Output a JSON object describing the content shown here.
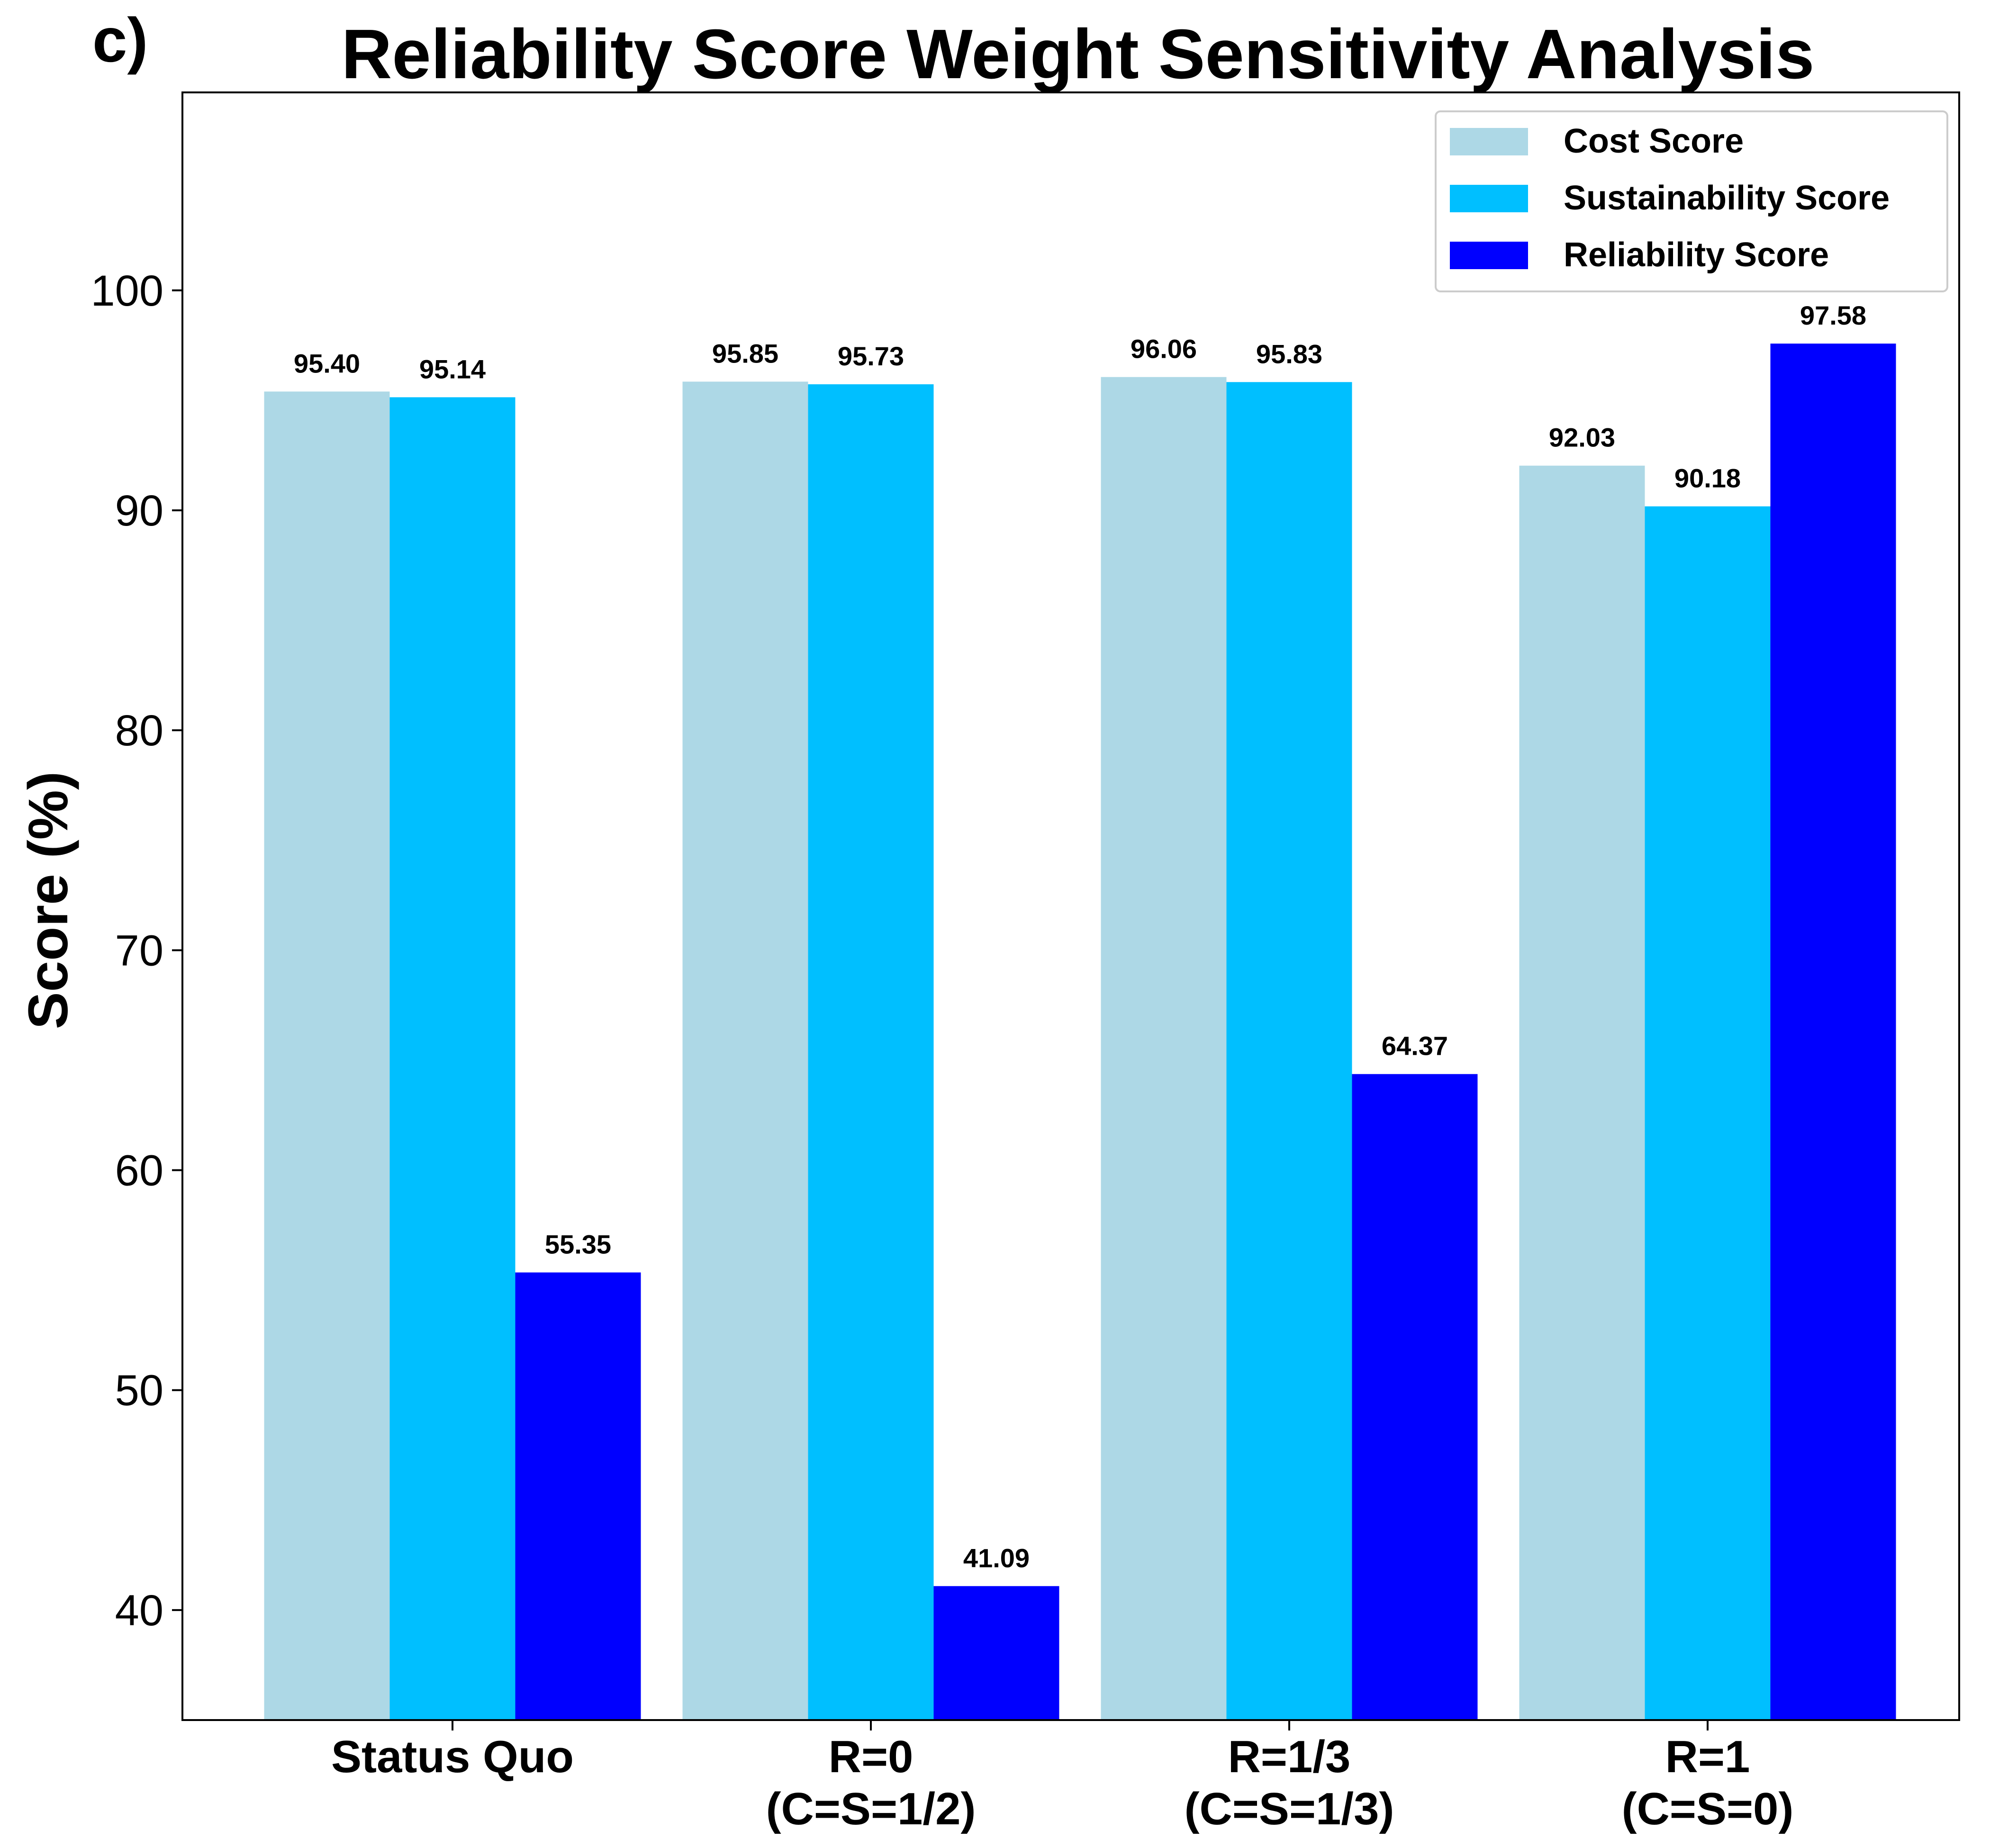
{
  "chart_data": {
    "type": "bar",
    "panel_label": "c)",
    "title": "Reliability Score Weight Sensitivity Analysis",
    "xlabel": "",
    "ylabel": "Score (%)",
    "ylim": [
      35,
      109
    ],
    "yticks": [
      40,
      50,
      60,
      70,
      80,
      90,
      100
    ],
    "grid": false,
    "legend_position": "top-right",
    "categories": [
      [
        "Status Quo"
      ],
      [
        "R=0",
        "(C=S=1/2)"
      ],
      [
        "R=1/3",
        "(C=S=1/3)"
      ],
      [
        "R=1",
        "(C=S=0)"
      ]
    ],
    "series": [
      {
        "name": "Cost Score",
        "color": "#add8e6",
        "values": [
          95.4,
          95.85,
          96.06,
          92.03
        ],
        "labels": [
          "95.40",
          "95.85",
          "96.06",
          "92.03"
        ]
      },
      {
        "name": "Sustainability Score",
        "color": "#00bfff",
        "values": [
          95.14,
          95.73,
          95.83,
          90.18
        ],
        "labels": [
          "95.14",
          "95.73",
          "95.83",
          "90.18"
        ]
      },
      {
        "name": "Reliability Score",
        "color": "#0000ff",
        "values": [
          55.35,
          41.09,
          64.37,
          97.58
        ],
        "labels": [
          "55.35",
          "41.09",
          "64.37",
          "97.58"
        ]
      }
    ]
  }
}
